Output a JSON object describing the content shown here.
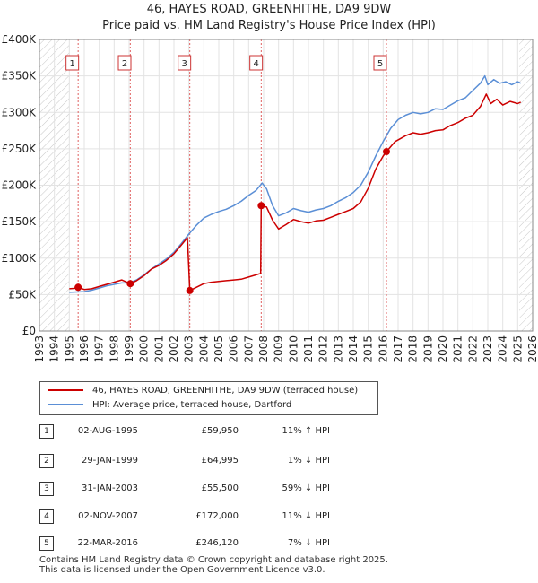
{
  "title_line1": "46, HAYES ROAD, GREENHITHE, DA9 9DW",
  "title_line2": "Price paid vs. HM Land Registry's House Price Index (HPI)",
  "chart_data": {
    "type": "line",
    "title": "46, HAYES ROAD, GREENHITHE, DA9 9DW",
    "subtitle": "Price paid vs. HM Land Registry's House Price Index (HPI)",
    "xlabel": "",
    "ylabel": "",
    "xlim": [
      1993,
      2026
    ],
    "ylim": [
      0,
      400000
    ],
    "y_ticks": [
      0,
      50000,
      100000,
      150000,
      200000,
      250000,
      300000,
      350000,
      400000
    ],
    "y_tick_labels": [
      "£0",
      "£50K",
      "£100K",
      "£150K",
      "£200K",
      "£250K",
      "£300K",
      "£350K",
      "£400K"
    ],
    "x_ticks": [
      1993,
      1994,
      1995,
      1996,
      1997,
      1998,
      1999,
      2000,
      2001,
      2002,
      2003,
      2004,
      2005,
      2006,
      2007,
      2008,
      2009,
      2010,
      2011,
      2012,
      2013,
      2014,
      2015,
      2016,
      2017,
      2018,
      2019,
      2020,
      2021,
      2022,
      2023,
      2024,
      2025,
      2026
    ],
    "grid": true,
    "shaded_regions": [
      [
        1993,
        1995.0
      ],
      [
        2025.1,
        2026
      ]
    ],
    "series": [
      {
        "name": "46, HAYES ROAD, GREENHITHE, DA9 9DW (terraced house)",
        "color": "#cc0000",
        "x": [
          1995.0,
          1995.3,
          1995.59,
          1996.0,
          1996.5,
          1997.0,
          1997.5,
          1998.0,
          1998.5,
          1999.08,
          1999.5,
          2000.0,
          2000.5,
          2001.0,
          2001.5,
          2002.0,
          2002.5,
          2002.9,
          2003.06,
          2003.5,
          2004.0,
          2004.5,
          2005.0,
          2005.5,
          2006.0,
          2006.5,
          2007.0,
          2007.5,
          2007.8,
          2007.84,
          2008.2,
          2008.6,
          2009.0,
          2009.5,
          2010.0,
          2010.5,
          2011.0,
          2011.5,
          2012.0,
          2012.5,
          2013.0,
          2013.5,
          2014.0,
          2014.5,
          2015.0,
          2015.5,
          2016.0,
          2016.22,
          2016.8,
          2017.5,
          2018.0,
          2018.5,
          2019.0,
          2019.5,
          2020.0,
          2020.5,
          2021.0,
          2021.5,
          2022.0,
          2022.5,
          2022.9,
          2023.2,
          2023.6,
          2024.0,
          2024.5,
          2025.0,
          2025.2
        ],
        "values": [
          58000,
          58500,
          59950,
          57000,
          58000,
          61000,
          64000,
          67000,
          70000,
          64995,
          69000,
          76000,
          85000,
          90000,
          97000,
          106000,
          118000,
          128000,
          55500,
          60000,
          65000,
          67000,
          68000,
          69000,
          70000,
          71000,
          74000,
          77000,
          79000,
          172000,
          170000,
          152000,
          140000,
          146000,
          153000,
          150000,
          148000,
          151000,
          152000,
          156000,
          160000,
          164000,
          168000,
          177000,
          196000,
          222000,
          240000,
          246120,
          260000,
          268000,
          272000,
          270000,
          272000,
          275000,
          276000,
          282000,
          286000,
          292000,
          296000,
          308000,
          325000,
          312000,
          318000,
          310000,
          315000,
          312000,
          314000
        ]
      },
      {
        "name": "HPI: Average price, terraced house, Dartford",
        "color": "#5b8fd6",
        "x": [
          1995.0,
          1995.5,
          1996.0,
          1996.5,
          1997.0,
          1997.5,
          1998.0,
          1998.5,
          1999.0,
          1999.5,
          2000.0,
          2000.5,
          2001.0,
          2001.5,
          2002.0,
          2002.5,
          2003.0,
          2003.5,
          2004.0,
          2004.5,
          2005.0,
          2005.5,
          2006.0,
          2006.5,
          2007.0,
          2007.5,
          2007.9,
          2008.2,
          2008.6,
          2009.0,
          2009.5,
          2010.0,
          2010.5,
          2011.0,
          2011.5,
          2012.0,
          2012.5,
          2013.0,
          2013.5,
          2014.0,
          2014.5,
          2015.0,
          2015.5,
          2016.0,
          2016.5,
          2017.0,
          2017.5,
          2018.0,
          2018.5,
          2019.0,
          2019.5,
          2020.0,
          2020.5,
          2021.0,
          2021.5,
          2022.0,
          2022.5,
          2022.8,
          2023.0,
          2023.4,
          2023.8,
          2024.2,
          2024.6,
          2025.0,
          2025.2
        ],
        "values": [
          53000,
          53500,
          54000,
          56000,
          59000,
          62000,
          64000,
          66000,
          66000,
          70000,
          77000,
          85000,
          92000,
          99000,
          108000,
          120000,
          133000,
          145000,
          155000,
          160000,
          164000,
          167000,
          172000,
          178000,
          186000,
          193000,
          203000,
          195000,
          172000,
          158000,
          162000,
          168000,
          165000,
          163000,
          166000,
          168000,
          172000,
          178000,
          183000,
          190000,
          200000,
          218000,
          240000,
          260000,
          278000,
          290000,
          296000,
          300000,
          298000,
          300000,
          305000,
          304000,
          310000,
          316000,
          320000,
          330000,
          340000,
          350000,
          338000,
          345000,
          340000,
          342000,
          338000,
          342000,
          340000
        ]
      }
    ],
    "sales": [
      {
        "label": "1",
        "x": 1995.59,
        "price": 59950,
        "box_x": 1995.2
      },
      {
        "label": "2",
        "x": 1999.08,
        "price": 64995,
        "box_x": 1998.7
      },
      {
        "label": "3",
        "x": 2003.06,
        "price": 55500,
        "box_x": 2002.7
      },
      {
        "label": "4",
        "x": 2007.84,
        "price": 172000,
        "box_x": 2007.5
      },
      {
        "label": "5",
        "x": 2016.22,
        "price": 246120,
        "box_x": 2015.8
      }
    ]
  },
  "legend": {
    "property_label": "46, HAYES ROAD, GREENHITHE, DA9 9DW (terraced house)",
    "hpi_label": "HPI: Average price, terraced house, Dartford"
  },
  "sales_table": [
    {
      "num": "1",
      "date": "02-AUG-1995",
      "price": "£59,950",
      "hpi": "11% ↑ HPI"
    },
    {
      "num": "2",
      "date": "29-JAN-1999",
      "price": "£64,995",
      "hpi": "1% ↓ HPI"
    },
    {
      "num": "3",
      "date": "31-JAN-2003",
      "price": "£55,500",
      "hpi": "59% ↓ HPI"
    },
    {
      "num": "4",
      "date": "02-NOV-2007",
      "price": "£172,000",
      "hpi": "11% ↓ HPI"
    },
    {
      "num": "5",
      "date": "22-MAR-2016",
      "price": "£246,120",
      "hpi": "7% ↓ HPI"
    }
  ],
  "footer_line1": "Contains HM Land Registry data © Crown copyright and database right 2025.",
  "footer_line2": "This data is licensed under the Open Government Licence v3.0."
}
